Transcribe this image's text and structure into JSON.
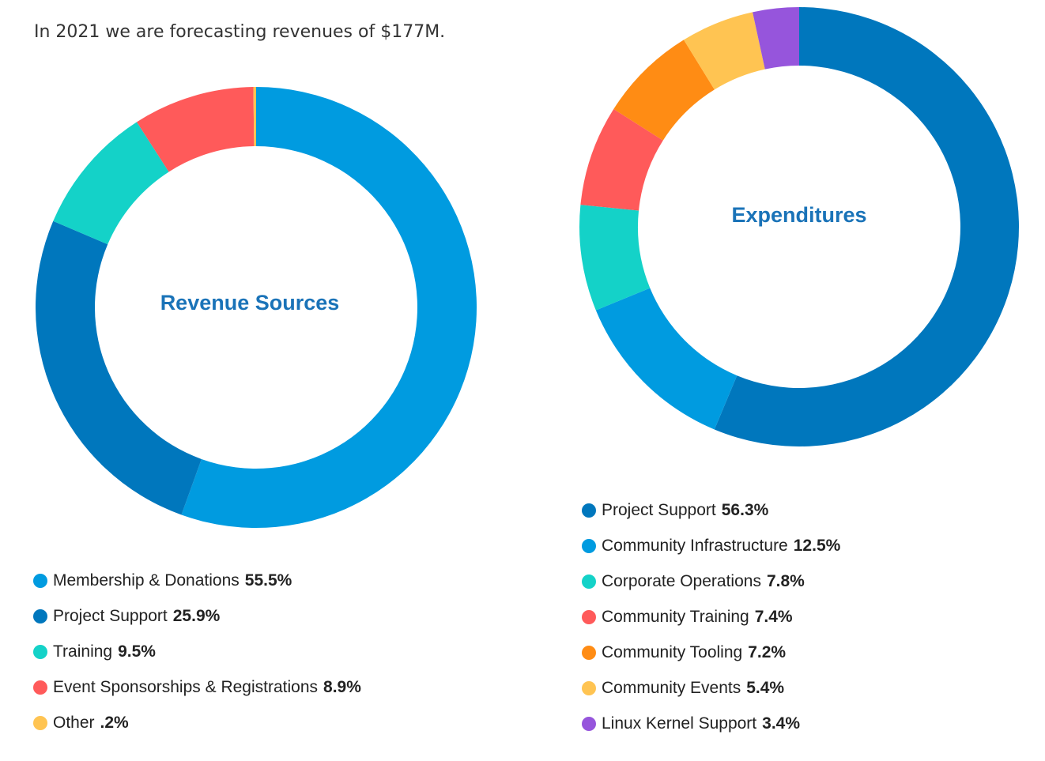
{
  "intro_text": "In 2021 we are forecasting revenues of $177M.",
  "chart_data": [
    {
      "type": "pie",
      "style": "donut",
      "title": "Revenue Sources",
      "slices": [
        {
          "label": "Membership & Donations",
          "value": 55.5,
          "display": "55.5%",
          "color": "#009be0"
        },
        {
          "label": "Project Support",
          "value": 25.9,
          "display": "25.9%",
          "color": "#0077bd"
        },
        {
          "label": "Training",
          "value": 9.5,
          "display": "9.5%",
          "color": "#14d2c8"
        },
        {
          "label": "Event Sponsorships & Registrations",
          "value": 8.9,
          "display": "8.9%",
          "color": "#ff5a5a"
        },
        {
          "label": "Other",
          "value": 0.2,
          "display": ".2%",
          "color": "#ffc452"
        }
      ],
      "legend_position": "bottom"
    },
    {
      "type": "pie",
      "style": "donut",
      "title": "Expenditures",
      "slices": [
        {
          "label": "Project Support",
          "value": 56.3,
          "display": "56.3%",
          "color": "#0077bd"
        },
        {
          "label": "Community Infrastructure",
          "value": 12.5,
          "display": "12.5%",
          "color": "#009be0"
        },
        {
          "label": "Corporate Operations",
          "value": 7.8,
          "display": "7.8%",
          "color": "#14d2c8"
        },
        {
          "label": "Community Training",
          "value": 7.4,
          "display": "7.4%",
          "color": "#ff5a5a"
        },
        {
          "label": "Community Tooling",
          "value": 7.2,
          "display": "7.2%",
          "color": "#ff8c14"
        },
        {
          "label": "Community Events",
          "value": 5.4,
          "display": "5.4%",
          "color": "#ffc452"
        },
        {
          "label": "Linux Kernel Support",
          "value": 3.4,
          "display": "3.4%",
          "color": "#9655dc"
        }
      ],
      "legend_position": "bottom"
    }
  ]
}
